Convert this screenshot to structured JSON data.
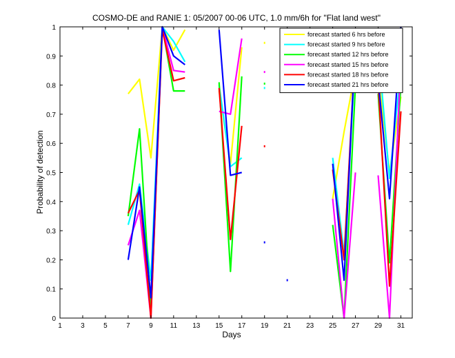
{
  "chart_data": {
    "type": "line",
    "title": "COSMO-DE and RANIE 1: 05/2007 00-06 UTC, 1.0 mm/6h for \"Flat land west\"",
    "xlabel": "Days",
    "ylabel": "Probability of detection",
    "xlim": [
      1,
      32
    ],
    "ylim": [
      0,
      1
    ],
    "xticks": [
      1,
      3,
      5,
      7,
      9,
      11,
      13,
      15,
      17,
      19,
      21,
      23,
      25,
      27,
      29,
      31
    ],
    "yticks": [
      0,
      0.1,
      0.2,
      0.3,
      0.4,
      0.5,
      0.6,
      0.7,
      0.8,
      0.9,
      1
    ],
    "grid": false,
    "legend_position": "top-right",
    "series": [
      {
        "name": "forecast started 6 hrs before",
        "color": "#ffff00",
        "points": [
          [
            7,
            0.77
          ],
          [
            8,
            0.82
          ],
          [
            9,
            0.55
          ],
          [
            10,
            1.0
          ],
          [
            11,
            0.92
          ],
          [
            12,
            0.99
          ],
          [
            15,
            0.78
          ],
          [
            16,
            0.53
          ],
          [
            17,
            0.93
          ],
          [
            19,
            0.945
          ],
          [
            21,
            0.918
          ],
          [
            25,
            0.41
          ],
          [
            26,
            0.64
          ],
          [
            27,
            0.85
          ],
          [
            29,
            0.84
          ],
          [
            30,
            0.5
          ],
          [
            31,
            0.76
          ]
        ]
      },
      {
        "name": "forecast started 9 hrs before",
        "color": "#00ffff",
        "points": [
          [
            7,
            0.32
          ],
          [
            8,
            0.46
          ],
          [
            9,
            0.13
          ],
          [
            10,
            1.0
          ],
          [
            11,
            0.95
          ],
          [
            12,
            0.88
          ],
          [
            15,
            0.8
          ],
          [
            16,
            0.52
          ],
          [
            17,
            0.55
          ],
          [
            19,
            0.79
          ],
          [
            25,
            0.55
          ],
          [
            26,
            0.22
          ],
          [
            27,
            0.9
          ],
          [
            29,
            0.93
          ],
          [
            30,
            0.48
          ],
          [
            31,
            0.85
          ]
        ]
      },
      {
        "name": "forecast started 12 hrs before",
        "color": "#00ff00",
        "points": [
          [
            7,
            0.35
          ],
          [
            8,
            0.65
          ],
          [
            9,
            0.02
          ],
          [
            10,
            1.0
          ],
          [
            11,
            0.78
          ],
          [
            12,
            0.78
          ],
          [
            15,
            0.81
          ],
          [
            16,
            0.16
          ],
          [
            17,
            0.83
          ],
          [
            19,
            0.805
          ],
          [
            23,
            0.915
          ],
          [
            25,
            0.32
          ],
          [
            26,
            0.0
          ],
          [
            27,
            0.8
          ],
          [
            29,
            0.77
          ],
          [
            30,
            0.19
          ],
          [
            31,
            0.8
          ]
        ]
      },
      {
        "name": "forecast started 15 hrs before",
        "color": "#ff00ff",
        "points": [
          [
            7,
            0.25
          ],
          [
            8,
            0.37
          ],
          [
            9,
            0.0
          ],
          [
            10,
            1.0
          ],
          [
            11,
            0.85
          ],
          [
            12,
            0.845
          ],
          [
            15,
            0.71
          ],
          [
            16,
            0.7
          ],
          [
            17,
            0.96
          ],
          [
            19,
            0.845
          ],
          [
            25,
            0.41
          ],
          [
            26,
            0.0
          ],
          [
            27,
            0.5
          ],
          [
            29,
            0.49
          ],
          [
            30,
            0.0
          ],
          [
            31,
            0.89
          ]
        ]
      },
      {
        "name": "forecast started 18 hrs before",
        "color": "#ff0000",
        "points": [
          [
            7,
            0.36
          ],
          [
            8,
            0.44
          ],
          [
            9,
            0.0
          ],
          [
            10,
            0.99
          ],
          [
            11,
            0.815
          ],
          [
            12,
            0.825
          ],
          [
            15,
            0.79
          ],
          [
            16,
            0.27
          ],
          [
            17,
            0.66
          ],
          [
            19,
            0.59
          ],
          [
            25,
            0.51
          ],
          [
            26,
            0.2
          ],
          [
            27,
            0.94
          ],
          [
            29,
            0.81
          ],
          [
            30,
            0.11
          ],
          [
            31,
            0.71
          ]
        ]
      },
      {
        "name": "forecast started 21 hrs before",
        "color": "#0000ff",
        "points": [
          [
            7,
            0.2
          ],
          [
            8,
            0.45
          ],
          [
            9,
            0.07
          ],
          [
            10,
            1.0
          ],
          [
            11,
            0.9
          ],
          [
            12,
            0.87
          ],
          [
            15,
            0.99
          ],
          [
            16,
            0.49
          ],
          [
            17,
            0.5
          ],
          [
            19,
            0.26
          ],
          [
            21,
            0.13
          ],
          [
            25,
            0.53
          ],
          [
            26,
            0.13
          ],
          [
            27,
            0.96
          ],
          [
            29,
            0.82
          ],
          [
            30,
            0.41
          ],
          [
            31,
            1.0
          ]
        ]
      }
    ]
  }
}
